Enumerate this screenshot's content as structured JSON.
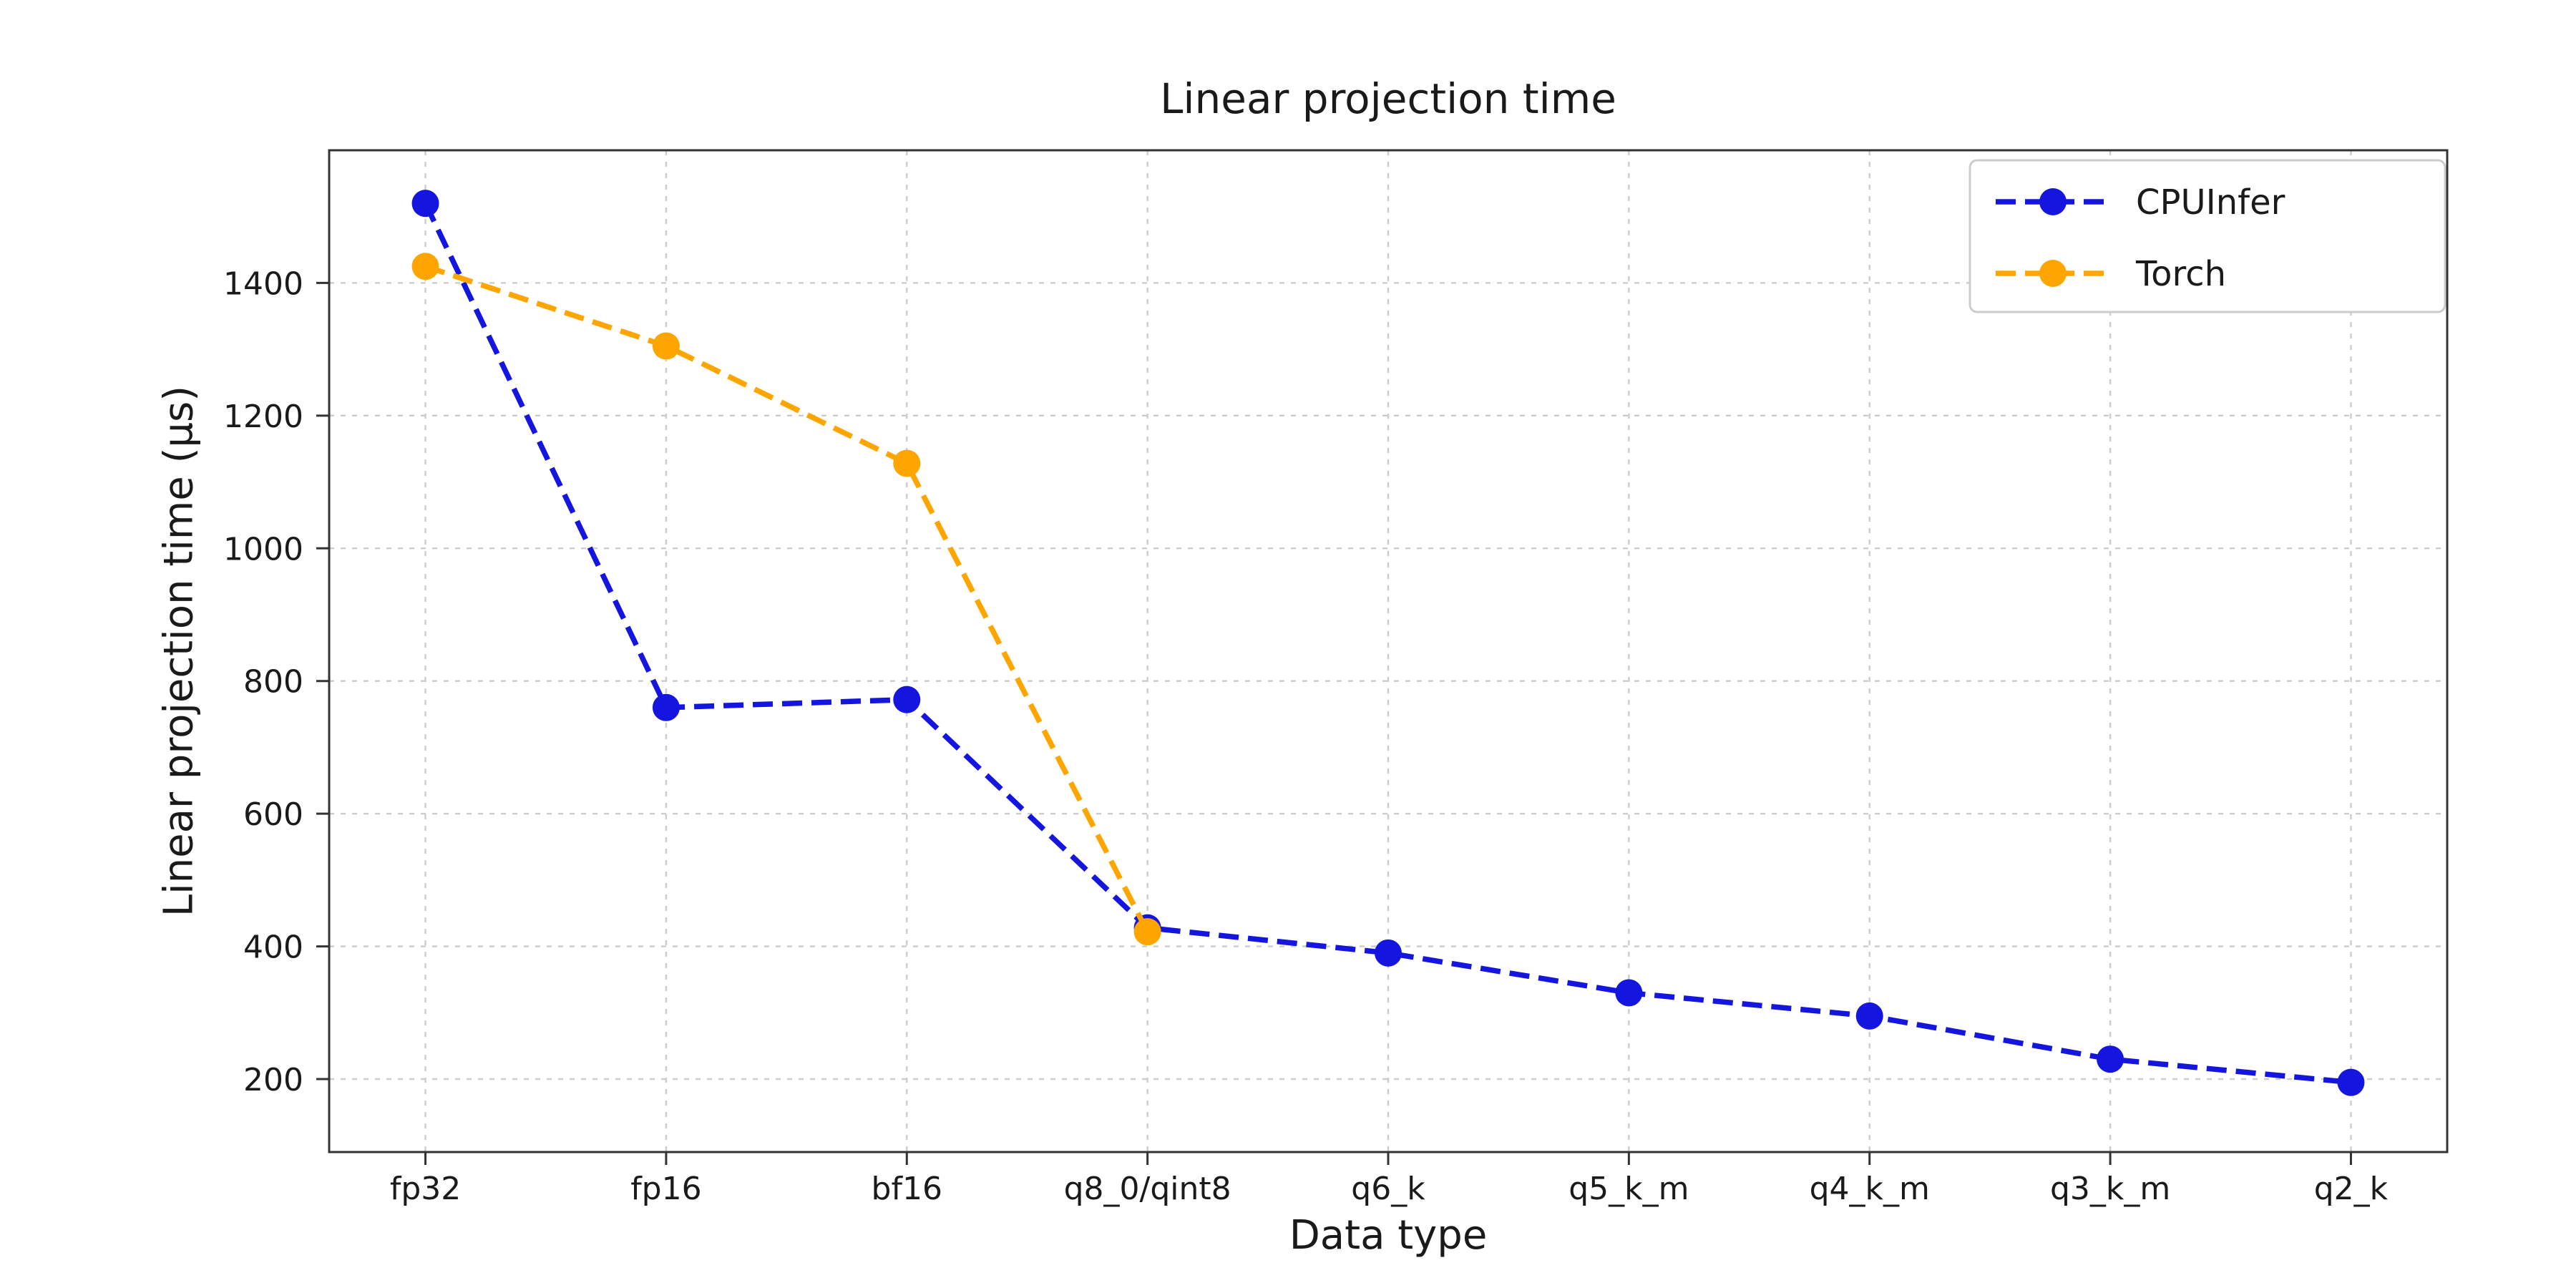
{
  "chart_data": {
    "type": "line",
    "title": "Linear projection time",
    "xlabel": "Data type",
    "ylabel": "Linear projection time (µs)",
    "categories": [
      "fp32",
      "fp16",
      "bf16",
      "q8_0/qint8",
      "q6_k",
      "q5_k_m",
      "q4_k_m",
      "q3_k_m",
      "q2_k"
    ],
    "series": [
      {
        "name": "CPUInfer",
        "color": "#1515e0",
        "values": [
          1520,
          760,
          772,
          428,
          390,
          330,
          295,
          230,
          195
        ]
      },
      {
        "name": "Torch",
        "color": "#ffa500",
        "values": [
          1425,
          1305,
          1128,
          422
        ]
      }
    ],
    "ylim": [
      90,
      1600
    ],
    "yticks": [
      200,
      400,
      600,
      800,
      1000,
      1200,
      1400
    ],
    "grid": true,
    "line_style": "dashed",
    "marker": "circle",
    "legend_position": "upper right"
  }
}
